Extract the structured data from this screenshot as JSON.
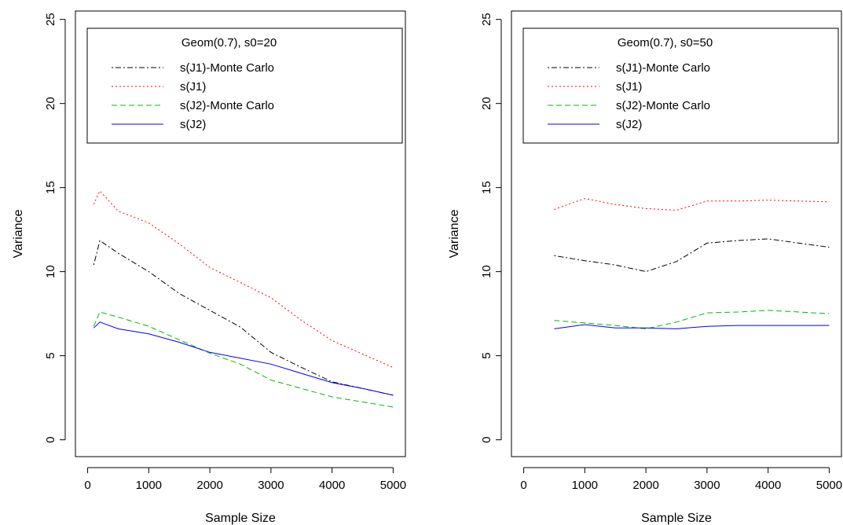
{
  "chart_data": [
    {
      "type": "line",
      "title": "",
      "xlabel": "Sample Size",
      "ylabel": "Variance",
      "xlim": [
        -200,
        5200
      ],
      "ylim": [
        -1,
        25.5
      ],
      "xticks": [
        0,
        1000,
        2000,
        3000,
        4000,
        5000
      ],
      "yticks": [
        0,
        5,
        10,
        15,
        20,
        25
      ],
      "legend": {
        "title": "Geom(0.7), s0=20",
        "placement": "top"
      },
      "x": [
        100,
        200,
        500,
        1000,
        1500,
        2000,
        2500,
        3000,
        3500,
        4000,
        4500,
        5000
      ],
      "series": [
        {
          "name": "s(J1)-Monte Carlo",
          "color": "#000000",
          "dash": "dotdash",
          "values": [
            10.4,
            11.85,
            11.1,
            10.0,
            8.7,
            7.7,
            6.7,
            5.2,
            4.3,
            3.45,
            3.05,
            2.65
          ]
        },
        {
          "name": "s(J1)",
          "color": "#ff0000",
          "dash": "dotted",
          "values": [
            14.0,
            14.8,
            13.6,
            12.9,
            11.65,
            10.25,
            9.35,
            8.45,
            7.1,
            5.9,
            5.1,
            4.3
          ]
        },
        {
          "name": "s(J2)-Monte Carlo",
          "color": "#00bb00",
          "dash": "dashed",
          "values": [
            6.75,
            7.6,
            7.3,
            6.75,
            5.95,
            5.15,
            4.5,
            3.55,
            3.05,
            2.55,
            2.25,
            1.95
          ]
        },
        {
          "name": "s(J2)",
          "color": "#0000ff",
          "dash": "solid",
          "values": [
            6.65,
            7.0,
            6.6,
            6.3,
            5.8,
            5.2,
            4.85,
            4.5,
            3.95,
            3.4,
            3.05,
            2.65
          ]
        }
      ]
    },
    {
      "type": "line",
      "title": "",
      "xlabel": "Sample Size",
      "ylabel": "Variance",
      "xlim": [
        -200,
        5200
      ],
      "ylim": [
        -1,
        25.5
      ],
      "xticks": [
        0,
        1000,
        2000,
        3000,
        4000,
        5000
      ],
      "yticks": [
        0,
        5,
        10,
        15,
        20,
        25
      ],
      "legend": {
        "title": "Geom(0.7), s0=50",
        "placement": "top"
      },
      "x": [
        500,
        1000,
        1500,
        2000,
        2500,
        3000,
        3500,
        4000,
        4500,
        5000
      ],
      "series": [
        {
          "name": "s(J1)-Monte Carlo",
          "color": "#000000",
          "dash": "dotdash",
          "values": [
            10.95,
            10.65,
            10.4,
            10.0,
            10.6,
            11.7,
            11.85,
            11.95,
            11.7,
            11.45
          ]
        },
        {
          "name": "s(J1)",
          "color": "#ff0000",
          "dash": "dotted",
          "values": [
            13.7,
            14.35,
            14.0,
            13.75,
            13.65,
            14.2,
            14.2,
            14.25,
            14.2,
            14.15
          ]
        },
        {
          "name": "s(J2)-Monte Carlo",
          "color": "#00bb00",
          "dash": "dashed",
          "values": [
            7.1,
            6.95,
            6.8,
            6.6,
            7.0,
            7.55,
            7.6,
            7.7,
            7.6,
            7.5
          ]
        },
        {
          "name": "s(J2)",
          "color": "#0000ff",
          "dash": "solid",
          "values": [
            6.6,
            6.85,
            6.65,
            6.65,
            6.6,
            6.75,
            6.8,
            6.8,
            6.8,
            6.8
          ]
        }
      ]
    }
  ]
}
